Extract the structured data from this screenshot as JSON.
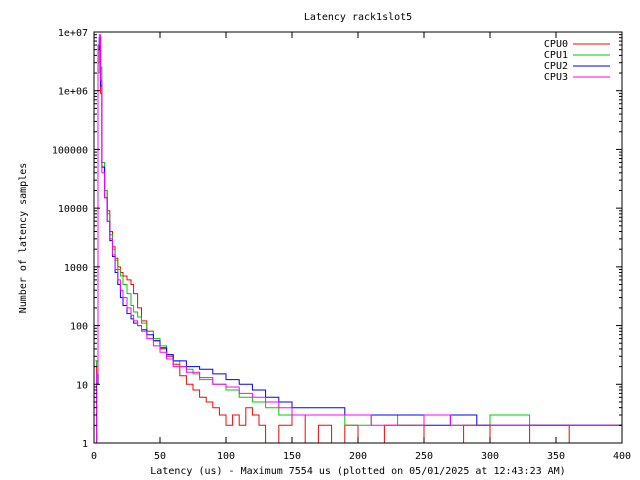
{
  "chart_data": {
    "type": "line",
    "title": "Latency rack1slot5",
    "xlabel": "Latency (us) - Maximum 7554 us (plotted on 05/01/2025 at 12:43:23 AM)",
    "ylabel": "Number of latency samples",
    "x_scale": "linear",
    "y_scale": "log",
    "xlim": [
      0,
      400
    ],
    "ylim": [
      1,
      10000000
    ],
    "x_ticks": [
      0,
      50,
      100,
      150,
      200,
      250,
      300,
      350,
      400
    ],
    "x_tick_labels": [
      "0",
      "50",
      "100",
      "150",
      "200",
      "250",
      "300",
      "350",
      "400"
    ],
    "y_ticks": [
      1,
      10,
      100,
      1000,
      10000,
      100000,
      1000000,
      10000000
    ],
    "y_tick_labels": [
      "1",
      "10",
      "100",
      "1000",
      "10000",
      "100000",
      "1e+06",
      "1e+07"
    ],
    "legend_position": "top-right",
    "render_style": "steps",
    "series": [
      {
        "name": "CPU0",
        "color": "#ff0000",
        "points": [
          [
            1,
            1
          ],
          [
            2,
            25
          ],
          [
            3,
            3000000
          ],
          [
            4,
            5000000
          ],
          [
            5,
            900000
          ],
          [
            6,
            50000
          ],
          [
            8,
            20000
          ],
          [
            10,
            9000
          ],
          [
            12,
            4000
          ],
          [
            14,
            2200
          ],
          [
            16,
            1400
          ],
          [
            18,
            1000
          ],
          [
            20,
            800
          ],
          [
            22,
            700
          ],
          [
            25,
            600
          ],
          [
            28,
            500
          ],
          [
            30,
            350
          ],
          [
            33,
            200
          ],
          [
            36,
            120
          ],
          [
            40,
            80
          ],
          [
            45,
            55
          ],
          [
            50,
            40
          ],
          [
            55,
            30
          ],
          [
            60,
            22
          ],
          [
            65,
            14
          ],
          [
            70,
            10
          ],
          [
            75,
            8
          ],
          [
            80,
            6
          ],
          [
            85,
            5
          ],
          [
            90,
            4
          ],
          [
            95,
            3
          ],
          [
            100,
            2
          ],
          [
            105,
            3
          ],
          [
            110,
            2
          ],
          [
            115,
            4
          ],
          [
            120,
            3
          ],
          [
            125,
            2
          ],
          [
            130,
            1
          ],
          [
            140,
            2
          ],
          [
            150,
            3
          ],
          [
            160,
            1
          ],
          [
            170,
            2
          ],
          [
            180,
            1
          ],
          [
            190,
            2
          ],
          [
            200,
            1
          ],
          [
            220,
            2
          ],
          [
            250,
            1
          ],
          [
            280,
            2
          ],
          [
            300,
            1
          ],
          [
            330,
            2
          ],
          [
            360,
            1
          ],
          [
            400,
            1
          ]
        ]
      },
      {
        "name": "CPU1",
        "color": "#00cc00",
        "points": [
          [
            1,
            25
          ],
          [
            2,
            20
          ],
          [
            3,
            2000000
          ],
          [
            4,
            8000000
          ],
          [
            5,
            2500000
          ],
          [
            6,
            60000
          ],
          [
            8,
            20000
          ],
          [
            10,
            8000
          ],
          [
            12,
            3500
          ],
          [
            14,
            2000
          ],
          [
            16,
            1300
          ],
          [
            18,
            900
          ],
          [
            20,
            700
          ],
          [
            22,
            500
          ],
          [
            25,
            350
          ],
          [
            28,
            220
          ],
          [
            30,
            170
          ],
          [
            33,
            140
          ],
          [
            36,
            110
          ],
          [
            40,
            80
          ],
          [
            45,
            60
          ],
          [
            50,
            45
          ],
          [
            55,
            32
          ],
          [
            60,
            25
          ],
          [
            65,
            20
          ],
          [
            70,
            18
          ],
          [
            75,
            15
          ],
          [
            80,
            12
          ],
          [
            90,
            10
          ],
          [
            100,
            8
          ],
          [
            110,
            6
          ],
          [
            120,
            5
          ],
          [
            130,
            4
          ],
          [
            140,
            3
          ],
          [
            150,
            3
          ],
          [
            170,
            3
          ],
          [
            190,
            2
          ],
          [
            210,
            3
          ],
          [
            230,
            2
          ],
          [
            250,
            3
          ],
          [
            270,
            2
          ],
          [
            300,
            3
          ],
          [
            330,
            2
          ],
          [
            360,
            2
          ],
          [
            400,
            2
          ]
        ]
      },
      {
        "name": "CPU2",
        "color": "#0000ff",
        "points": [
          [
            1,
            1
          ],
          [
            2,
            10
          ],
          [
            3,
            5000000
          ],
          [
            4,
            8000000
          ],
          [
            5,
            1200000
          ],
          [
            6,
            50000
          ],
          [
            8,
            15000
          ],
          [
            10,
            6000
          ],
          [
            12,
            2800
          ],
          [
            14,
            1500
          ],
          [
            16,
            800
          ],
          [
            18,
            500
          ],
          [
            20,
            300
          ],
          [
            22,
            220
          ],
          [
            25,
            160
          ],
          [
            28,
            130
          ],
          [
            30,
            110
          ],
          [
            33,
            100
          ],
          [
            36,
            85
          ],
          [
            40,
            70
          ],
          [
            45,
            55
          ],
          [
            50,
            42
          ],
          [
            55,
            32
          ],
          [
            60,
            25
          ],
          [
            70,
            20
          ],
          [
            80,
            18
          ],
          [
            90,
            15
          ],
          [
            100,
            12
          ],
          [
            110,
            10
          ],
          [
            120,
            8
          ],
          [
            130,
            6
          ],
          [
            140,
            5
          ],
          [
            150,
            4
          ],
          [
            170,
            4
          ],
          [
            190,
            3
          ],
          [
            210,
            3
          ],
          [
            230,
            3
          ],
          [
            250,
            2
          ],
          [
            270,
            3
          ],
          [
            290,
            2
          ],
          [
            320,
            2
          ],
          [
            350,
            2
          ],
          [
            380,
            2
          ],
          [
            400,
            2
          ]
        ]
      },
      {
        "name": "CPU3",
        "color": "#ff00ff",
        "points": [
          [
            1,
            1
          ],
          [
            2,
            15
          ],
          [
            3,
            6000000
          ],
          [
            4,
            9000000
          ],
          [
            5,
            1500000
          ],
          [
            6,
            40000
          ],
          [
            8,
            15000
          ],
          [
            10,
            6000
          ],
          [
            12,
            3000
          ],
          [
            14,
            1600
          ],
          [
            16,
            900
          ],
          [
            18,
            600
          ],
          [
            20,
            400
          ],
          [
            22,
            300
          ],
          [
            25,
            200
          ],
          [
            28,
            150
          ],
          [
            30,
            120
          ],
          [
            33,
            100
          ],
          [
            36,
            80
          ],
          [
            40,
            60
          ],
          [
            45,
            45
          ],
          [
            50,
            35
          ],
          [
            55,
            27
          ],
          [
            60,
            20
          ],
          [
            70,
            16
          ],
          [
            80,
            13
          ],
          [
            90,
            10
          ],
          [
            100,
            9
          ],
          [
            110,
            7
          ],
          [
            120,
            6
          ],
          [
            130,
            5
          ],
          [
            140,
            4
          ],
          [
            150,
            3
          ],
          [
            170,
            3
          ],
          [
            190,
            3
          ],
          [
            210,
            2
          ],
          [
            230,
            2
          ],
          [
            250,
            3
          ],
          [
            270,
            2
          ],
          [
            300,
            2
          ],
          [
            330,
            2
          ],
          [
            360,
            2
          ],
          [
            400,
            2
          ]
        ]
      }
    ]
  }
}
